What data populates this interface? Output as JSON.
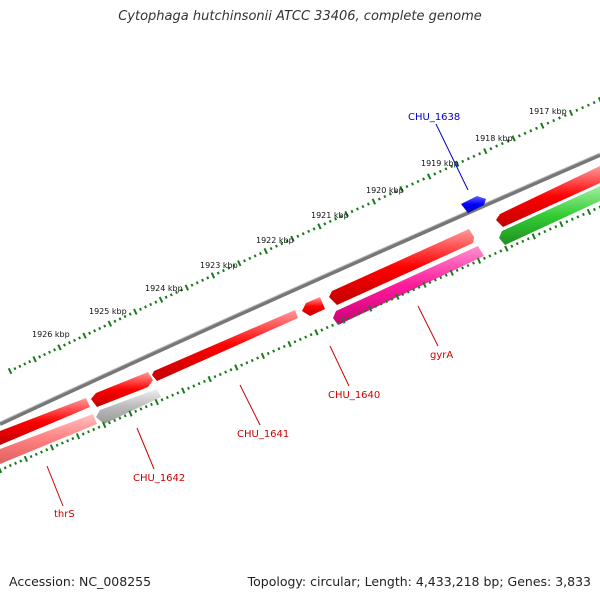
{
  "title": "Cytophaga hutchinsonii ATCC 33406, complete genome",
  "footer": {
    "accession": "Accession: NC_008255",
    "summary": "Topology: circular; Length: 4,433,218 bp; Genes: 3,833"
  },
  "scale_labels": [
    "1917 kbp",
    "1918 kbp",
    "1919 kbp",
    "1920 kbp",
    "1921 kbp",
    "1922 kbp",
    "1923 kbp",
    "1924 kbp",
    "1925 kbp",
    "1926 kbp"
  ],
  "gene_labels": [
    "CHU_1638",
    "gyrA",
    "CHU_1640",
    "CHU_1641",
    "CHU_1642",
    "thrS"
  ],
  "colors": {
    "backbone": "#888888",
    "forward_gene": "#ff0000",
    "reverse_gene": "#ff8080",
    "gyrA_gene": "#ff1a9c",
    "grey_gene": "#bbbbbb",
    "green_gene": "#33cc33",
    "blue_label": "#0000cc",
    "red_label": "#cc0000",
    "tick": "#1a7a1a"
  }
}
